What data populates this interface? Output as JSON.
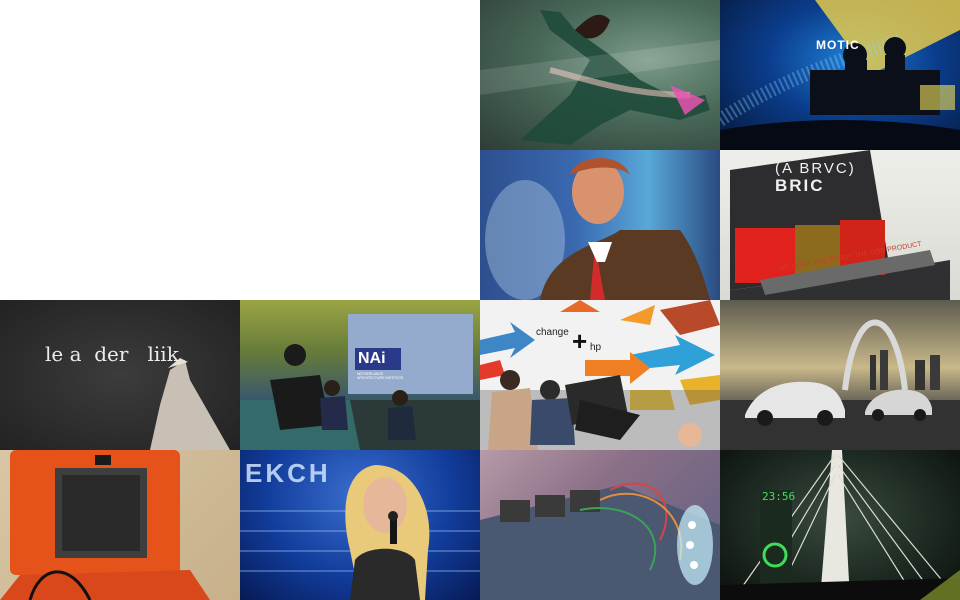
{
  "gallery": {
    "tiles": [
      {
        "subject": "dancer"
      },
      {
        "subject": "stage-dj",
        "caption": "MOTIC"
      },
      {
        "subject": "speaker"
      },
      {
        "subject": "gift-box",
        "caption_top": "(A BRVC)",
        "caption_mid": "BRIC",
        "caption_bottom": "WE HOPE YOU ENJOY THE COD PRODUCT"
      },
      {
        "subject": "chalkboard",
        "text": "le a  der   liik"
      },
      {
        "subject": "panel-discussion",
        "logo": "NAi",
        "logo_sub": "NETHERLANDS ARCHITECTURE INSTITUTE"
      },
      {
        "subject": "change-hp",
        "word1": "change",
        "word2": "hp"
      },
      {
        "subject": "cars-arch"
      },
      {
        "subject": "orange-case"
      },
      {
        "subject": "singer",
        "led": "EKCH"
      },
      {
        "subject": "circuit-board"
      },
      {
        "subject": "bridge-lights",
        "clock": "23:56"
      }
    ]
  },
  "colors": {
    "page_background": "#ffffff"
  }
}
